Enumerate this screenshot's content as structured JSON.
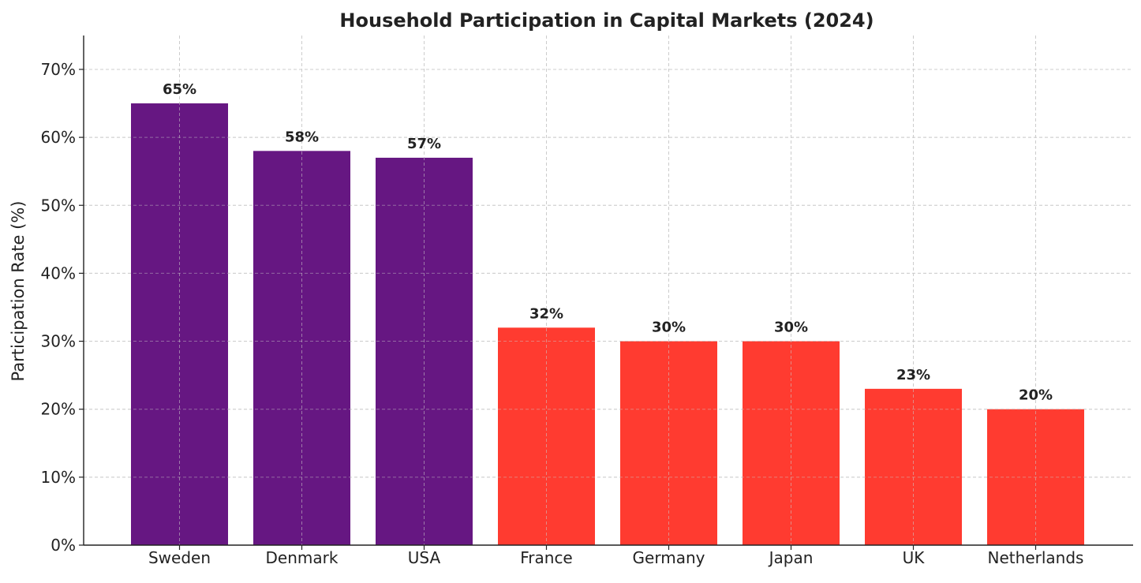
{
  "chart_data": {
    "type": "bar",
    "title": "Household Participation in Capital Markets (2024)",
    "xlabel": "",
    "ylabel": "Participation Rate (%)",
    "categories": [
      "Sweden",
      "Denmark",
      "USA",
      "France",
      "Germany",
      "Japan",
      "UK",
      "Netherlands"
    ],
    "values": [
      65,
      58,
      57,
      32,
      30,
      30,
      23,
      20
    ],
    "data_labels": [
      "65%",
      "58%",
      "57%",
      "32%",
      "30%",
      "30%",
      "23%",
      "20%"
    ],
    "bar_colors": [
      "#661782",
      "#661782",
      "#661782",
      "#ff3b30",
      "#ff3b30",
      "#ff3b30",
      "#ff3b30",
      "#ff3b30"
    ],
    "ylim": [
      0,
      75
    ],
    "yticks": [
      0,
      10,
      20,
      30,
      40,
      50,
      60,
      70
    ],
    "ytick_labels": [
      "0%",
      "10%",
      "20%",
      "30%",
      "40%",
      "50%",
      "60%",
      "70%"
    ],
    "grid": true,
    "legend": "none"
  }
}
